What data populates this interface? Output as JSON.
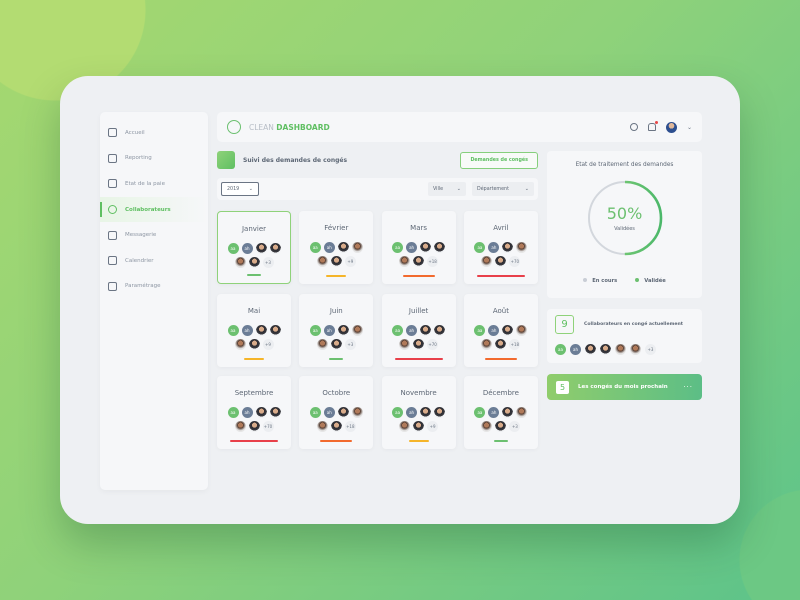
{
  "brand": {
    "light": "CLEAN",
    "bold": "DASHBOARD"
  },
  "colors": {
    "accent": "#5fbf62",
    "green": "#6cc070",
    "yellow": "#f5b52a",
    "orange": "#f26a2e",
    "red": "#e8404a"
  },
  "sidebar": {
    "items": [
      {
        "label": "Accueil",
        "icon": "grid-icon"
      },
      {
        "label": "Reporting",
        "icon": "bar-chart-icon"
      },
      {
        "label": "Etat de la paie",
        "icon": "table-icon"
      },
      {
        "label": "Collaborateurs",
        "icon": "user-icon",
        "active": true
      },
      {
        "label": "Messagerie",
        "icon": "chat-icon"
      },
      {
        "label": "Calendrier",
        "icon": "calendar-icon"
      },
      {
        "label": "Paramétrage",
        "icon": "gear-icon"
      }
    ]
  },
  "page": {
    "title": "Suivi des demandes de congés",
    "button": "Demandes de congés"
  },
  "filters": {
    "year": "2019",
    "city": "Ville",
    "department": "Département"
  },
  "months": [
    {
      "name": "Janvier",
      "more": "+3",
      "level": "low",
      "selected": true
    },
    {
      "name": "Février",
      "more": "+9",
      "level": "medium"
    },
    {
      "name": "Mars",
      "more": "+18",
      "level": "high"
    },
    {
      "name": "Avril",
      "more": "+70",
      "level": "very-high"
    },
    {
      "name": "Mai",
      "more": "+9",
      "level": "medium"
    },
    {
      "name": "Juin",
      "more": "+3",
      "level": "low"
    },
    {
      "name": "Juillet",
      "more": "+70",
      "level": "very-high"
    },
    {
      "name": "Août",
      "more": "+18",
      "level": "high"
    },
    {
      "name": "Septembre",
      "more": "+70",
      "level": "very-high"
    },
    {
      "name": "Octobre",
      "more": "+18",
      "level": "high"
    },
    {
      "name": "Novembre",
      "more": "+9",
      "level": "medium"
    },
    {
      "name": "Décembre",
      "more": "+3",
      "level": "low"
    }
  ],
  "initials": [
    "aa",
    "ah"
  ],
  "status": {
    "title": "Etat de traitement des demandes",
    "percent": 50,
    "percent_label": "50%",
    "sub": "Validées",
    "legend": [
      {
        "label": "En cours",
        "color": "#c9ced6"
      },
      {
        "label": "Validée",
        "color": "#6cc070"
      }
    ]
  },
  "current": {
    "count": "9",
    "label": "Collaborateurs en congé actuellement",
    "more": "+3"
  },
  "next_month": {
    "count": "5",
    "label": "Les congés du mois prochain",
    "more": "···"
  }
}
